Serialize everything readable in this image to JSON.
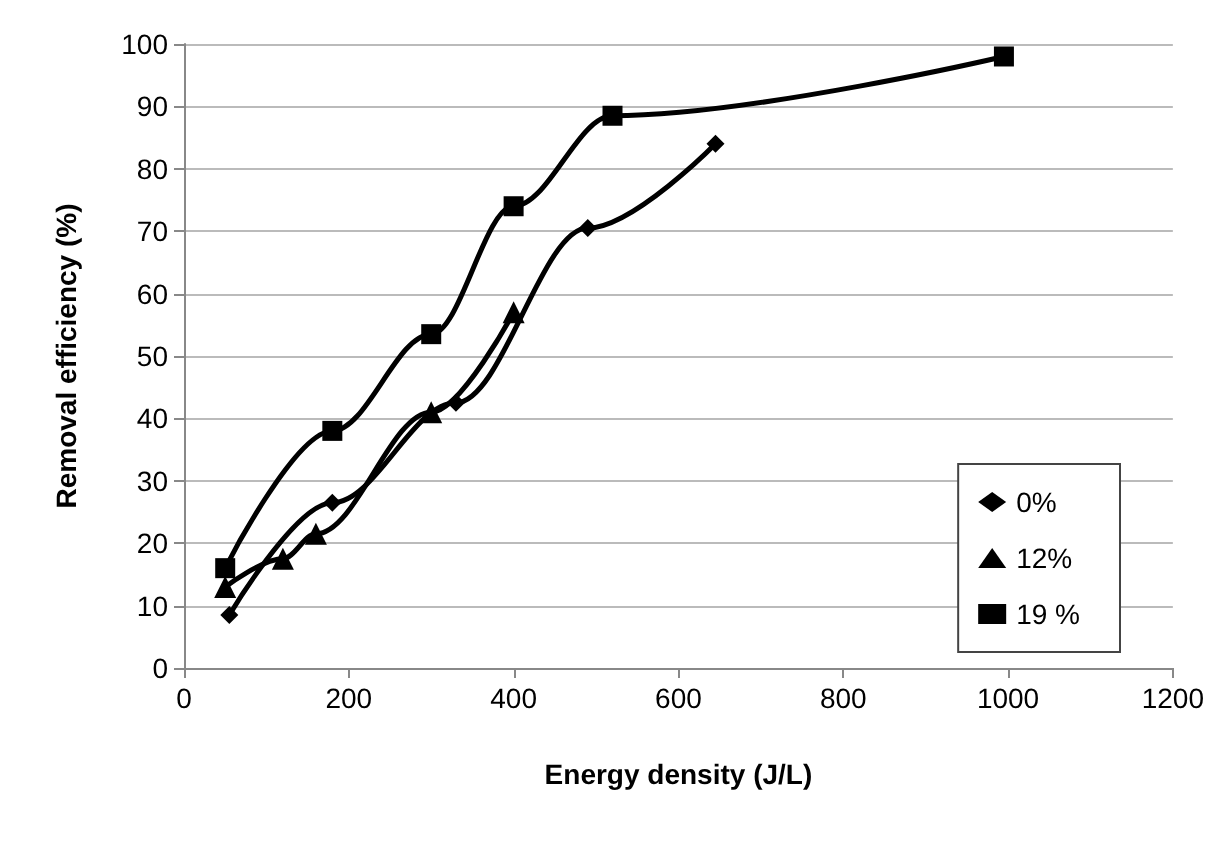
{
  "chart_data": {
    "type": "line",
    "xlabel": "Energy density (J/L)",
    "ylabel": "Removal efficiency (%)",
    "xlim": [
      0,
      1200
    ],
    "xticks": [
      0,
      200,
      400,
      600,
      800,
      1000,
      1200
    ],
    "ylim": [
      0,
      100
    ],
    "yticks": [
      0,
      10,
      20,
      30,
      40,
      50,
      60,
      70,
      80,
      90,
      100
    ],
    "grid": "y",
    "legend": "bottom right",
    "line_style": "solid",
    "series": [
      {
        "name": "0%",
        "color": "#000000",
        "marker": "diamond",
        "x": [
          55,
          180,
          330,
          490,
          645
        ],
        "values": [
          8.5,
          26.5,
          42.5,
          70.5,
          84
        ]
      },
      {
        "name": "12%",
        "color": "#000000",
        "marker": "triangle",
        "x": [
          50,
          120,
          160,
          300,
          400
        ],
        "values": [
          13,
          17.5,
          21.5,
          41,
          57
        ]
      },
      {
        "name": "19 %",
        "color": "#000000",
        "marker": "square",
        "x": [
          50,
          180,
          300,
          400,
          520,
          995
        ],
        "values": [
          16,
          38,
          53.5,
          74,
          88.5,
          98
        ]
      }
    ]
  }
}
